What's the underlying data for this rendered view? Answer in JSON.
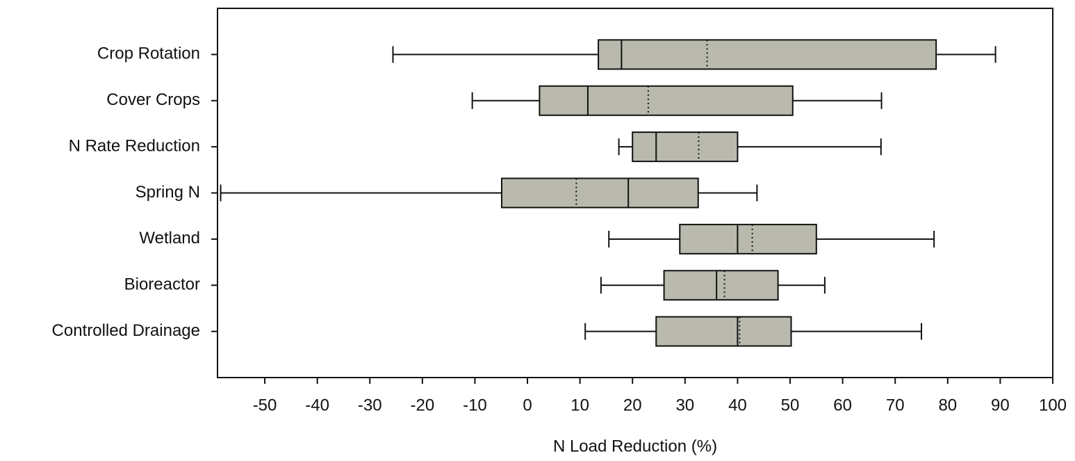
{
  "chart_data": {
    "type": "box",
    "x_label": "N Load Reduction (%)",
    "categories": [
      "Crop Rotation",
      "Cover Crops",
      "N Rate Reduction",
      "Spring N",
      "Wetland",
      "Bioreactor",
      "Controlled Drainage"
    ],
    "stats": [
      {
        "min": -25.6,
        "q1": 13.5,
        "median": 17.9,
        "mean": 34.2,
        "q3": 77.8,
        "max": 89.1
      },
      {
        "min": -10.5,
        "q1": 2.3,
        "median": 11.5,
        "mean": 23,
        "q3": 50.5,
        "max": 67.4
      },
      {
        "min": 17.4,
        "q1": 20,
        "median": 24.5,
        "mean": 32.6,
        "q3": 40,
        "max": 67.3
      },
      {
        "min": -58.4,
        "q1": -4.9,
        "median": 19.2,
        "mean": 9.3,
        "q3": 32.5,
        "max": 43.7
      },
      {
        "min": 15.5,
        "q1": 29,
        "median": 40,
        "mean": 42.8,
        "q3": 55,
        "max": 77.4
      },
      {
        "min": 14,
        "q1": 26,
        "median": 36,
        "mean": 37.5,
        "q3": 47.7,
        "max": 56.6
      },
      {
        "min": 11,
        "q1": 24.5,
        "median": 40,
        "mean": 40.4,
        "q3": 50.2,
        "max": 75
      }
    ],
    "color": "#b9b9ad",
    "xlim": [
      -59,
      100
    ],
    "xticks": [
      -50,
      -40,
      -30,
      -20,
      -10,
      0,
      10,
      20,
      30,
      40,
      50,
      60,
      70,
      80,
      90,
      100
    ]
  }
}
